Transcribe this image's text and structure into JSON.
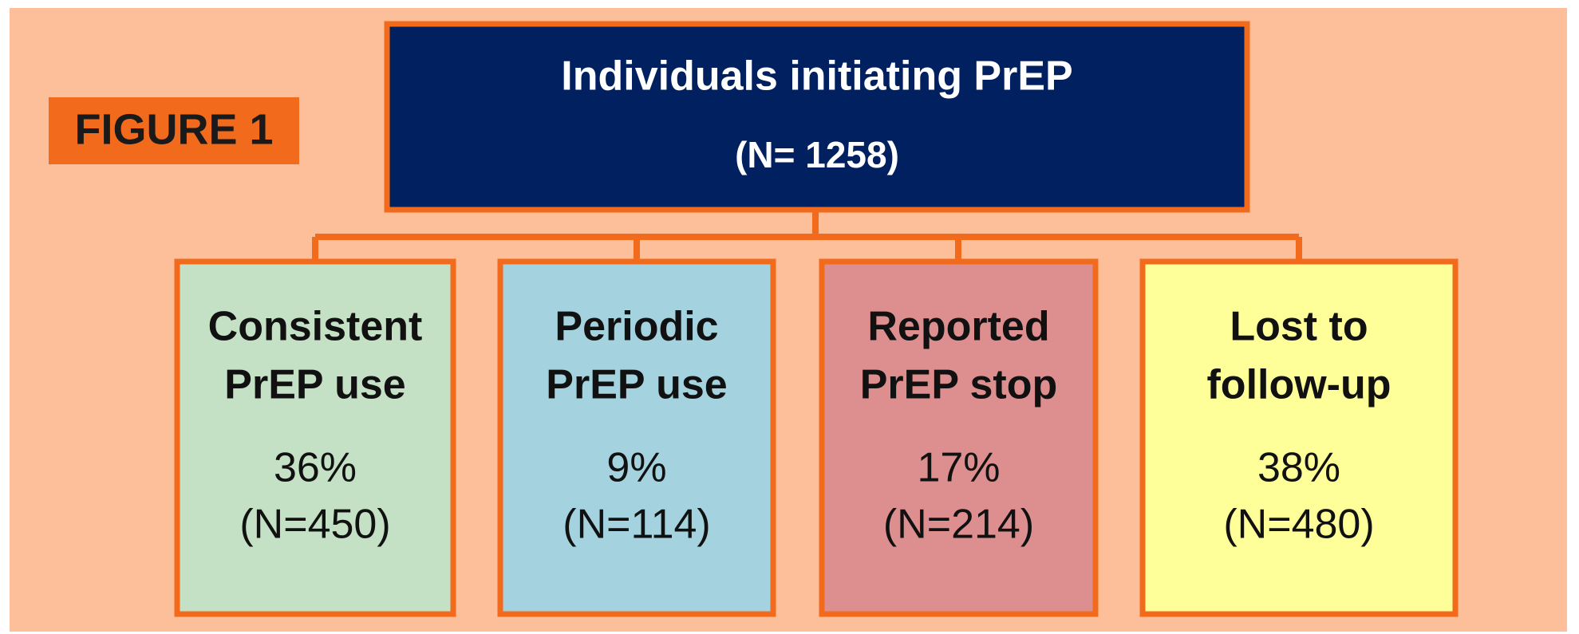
{
  "figure_label": "FIGURE 1",
  "root": {
    "title": "Individuals initiating PrEP",
    "n": "(N= 1258)"
  },
  "boxes": [
    {
      "lines": [
        "Consistent",
        "PrEP use"
      ],
      "percent": "36%",
      "n": "(N=450)",
      "color": "#c5e1c5"
    },
    {
      "lines": [
        "Periodic",
        "PrEP use"
      ],
      "percent": "9%",
      "n": "(N=114)",
      "color": "#a4d2df"
    },
    {
      "lines": [
        "Reported",
        "PrEP stop"
      ],
      "percent": "17%",
      "n": "(N=214)",
      "color": "#dd8e8e"
    },
    {
      "lines": [
        "Lost to",
        "follow-up"
      ],
      "percent": "38%",
      "n": "(N=480)",
      "color": "#ffff99"
    }
  ]
}
